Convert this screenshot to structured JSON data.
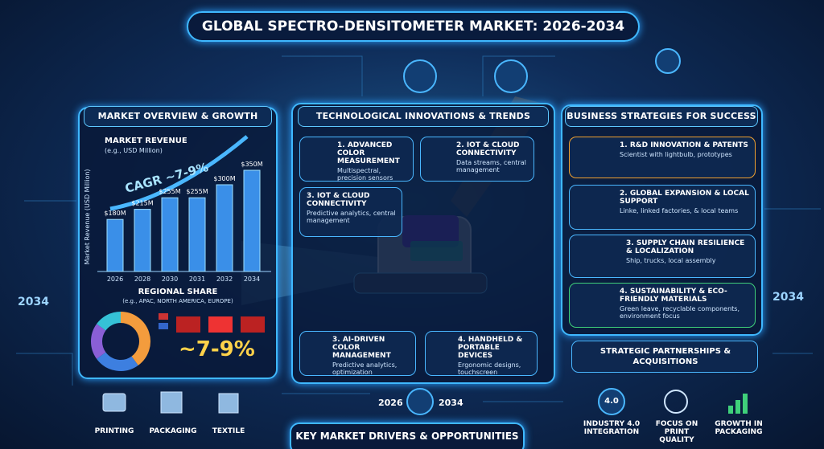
{
  "header": {
    "title": "GLOBAL SPECTRO-DENSITOMETER MARKET: 2026-2034"
  },
  "market": {
    "title": "MARKET OVERVIEW & GROWTH",
    "chart_label": "MARKET REVENUE",
    "chart_sublabel": "(e.g., USD Million)",
    "y_label": "Market Revenue (USD Million)",
    "cagr": "CAGR ~7-9%",
    "bars": {
      "categories": [
        "2026",
        "2028",
        "2030",
        "2031",
        "2032",
        "2034"
      ],
      "values": [
        180,
        215,
        255,
        255,
        300,
        350
      ],
      "value_labels": [
        "$180M",
        "$215M",
        "$255M",
        "$255M",
        "$300M",
        "$350M"
      ],
      "color": "#3a8fe8"
    }
  },
  "regional": {
    "title": "REGIONAL SHARE",
    "subtitle": "(e.g., APAC, NORTH AMERICA, EUROPE)",
    "share": "~7-9%",
    "segments": [
      {
        "value": 40,
        "color": "#f39c3d"
      },
      {
        "value": 25,
        "color": "#3d7fe0"
      },
      {
        "value": 20,
        "color": "#8a5fd6"
      },
      {
        "value": 15,
        "color": "#35c1d6"
      }
    ]
  },
  "tech": {
    "title": "TECHNOLOGICAL INNOVATIONS & TRENDS",
    "items": [
      {
        "title": "1. ADVANCED COLOR MEASUREMENT",
        "text": "Multispectral, precision sensors"
      },
      {
        "title": "2. IOT & CLOUD CONNECTIVITY",
        "text": "Data streams, central management"
      },
      {
        "title": "3. IOT & CLOUD CONNECTIVITY",
        "text": "Predictive analytics, central management"
      },
      {
        "title": "3. AI-DRIVEN COLOR MANAGEMENT",
        "text": "Predictive analytics, optimization"
      },
      {
        "title": "4. HANDHELD & PORTABLE DEVICES",
        "text": "Ergonomic designs, touchscreen"
      }
    ]
  },
  "business": {
    "title": "BUSINESS STRATEGIES FOR SUCCESS",
    "items": [
      {
        "title": "1. R&D INNOVATION & PATENTS",
        "text": "Scientist with lightbulb, prototypes"
      },
      {
        "title": "2. GLOBAL EXPANSION & LOCAL SUPPORT",
        "text": "Linke, linked factories, & local teams"
      },
      {
        "title": "3. SUPPLY CHAIN RESILIENCE & LOCALIZATION",
        "text": "Ship, trucks, local assembly"
      },
      {
        "title": "4. SUSTAINABILITY & ECO-FRIENDLY MATERIALS",
        "text": "Green leave, recyclable components, environment focus"
      }
    ],
    "partnerships": "STRATEGIC PARTNERSHIPS & ACQUISITIONS"
  },
  "industries": [
    "PRINTING",
    "PACKAGING",
    "TEXTILE"
  ],
  "timeline": [
    "2026",
    "2034"
  ],
  "footer": "KEY MARKET DRIVERS & OPPORTUNITIES",
  "drivers": {
    "icon": "4.0",
    "items": [
      "INDUSTRY 4.0 INTEGRATION",
      "FOCUS ON PRINT QUALITY",
      "GROWTH IN PACKAGING"
    ]
  },
  "side_years": [
    "2034",
    "2034"
  ]
}
